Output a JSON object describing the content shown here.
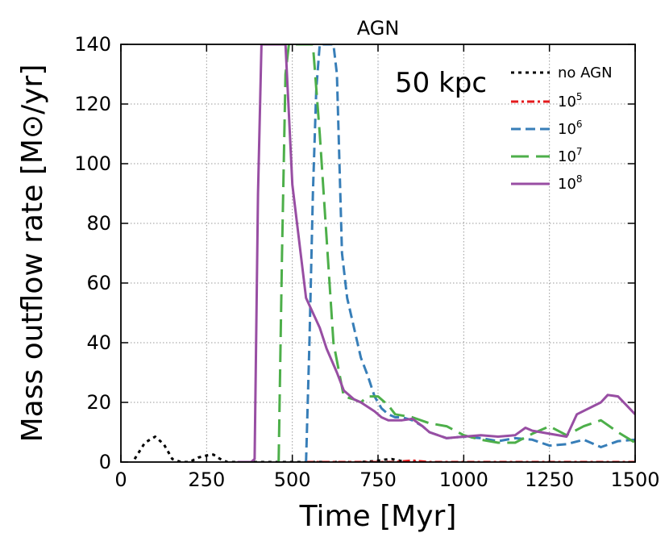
{
  "chart_data": {
    "type": "line",
    "title": "AGN",
    "xlabel": "Time [Myr]",
    "ylabel": "Mass outflow rate [M⊙/yr]",
    "annotation": "50 kpc",
    "xlim": [
      0,
      1500
    ],
    "ylim": [
      0,
      140
    ],
    "xticks": [
      0,
      250,
      500,
      750,
      1000,
      1250,
      1500
    ],
    "yticks": [
      0,
      20,
      40,
      60,
      80,
      100,
      120,
      140
    ],
    "grid": true,
    "legend_position": "top-right",
    "colors": {
      "no_agn": "#000000",
      "e5": "#e41a1c",
      "e6": "#377eb8",
      "e7": "#4daf4a",
      "e8": "#984ea3"
    },
    "series": [
      {
        "name": "no AGN",
        "label_base": "no AGN",
        "label_exp": "",
        "color_key": "no_agn",
        "style": "dotted",
        "x": [
          40,
          70,
          100,
          125,
          150,
          175,
          200,
          225,
          250,
          270,
          290,
          310,
          700,
          740,
          770,
          790,
          820,
          850,
          880
        ],
        "y": [
          1,
          6.5,
          8.5,
          6,
          1,
          0,
          0,
          1.5,
          2.2,
          2.5,
          1,
          0,
          0,
          0.3,
          0.8,
          1,
          0.3,
          0,
          0
        ]
      },
      {
        "name": "10^5",
        "label_base": "10",
        "label_exp": "5",
        "color_key": "e5",
        "style": "dashdot",
        "x": [
          540,
          600,
          650,
          700,
          750,
          800,
          850,
          900,
          950,
          1000,
          1050,
          1100,
          1150,
          1200,
          1250,
          1300,
          1350,
          1400,
          1450,
          1500
        ],
        "y": [
          0,
          0,
          0,
          0,
          0,
          0,
          0.5,
          0,
          0,
          0,
          0,
          0,
          0,
          0,
          0,
          0,
          0,
          0,
          0,
          0
        ]
      },
      {
        "name": "10^6",
        "label_base": "10",
        "label_exp": "6",
        "color_key": "e6",
        "style": "dashed",
        "x": [
          540,
          550,
          560,
          570,
          580,
          590,
          600,
          610,
          620,
          630,
          645,
          660,
          680,
          700,
          720,
          740,
          760,
          780,
          800,
          820,
          850,
          880,
          900,
          950,
          1000,
          1050,
          1100,
          1150,
          1200,
          1250,
          1300,
          1350,
          1400,
          1450,
          1500
        ],
        "y": [
          0,
          40,
          90,
          125,
          140,
          140,
          140,
          140,
          140,
          130,
          70,
          55,
          45,
          35,
          29,
          22,
          18,
          16,
          15,
          15,
          14,
          12,
          10,
          8,
          8.5,
          8,
          7,
          8,
          7.5,
          5.5,
          6,
          7.5,
          5,
          7,
          7.5
        ]
      },
      {
        "name": "10^7",
        "label_base": "10",
        "label_exp": "7",
        "color_key": "e7",
        "style": "longdash",
        "x": [
          460,
          470,
          480,
          490,
          500,
          510,
          520,
          530,
          540,
          560,
          580,
          600,
          620,
          650,
          680,
          700,
          720,
          750,
          780,
          800,
          850,
          900,
          950,
          1000,
          1050,
          1100,
          1150,
          1200,
          1250,
          1300,
          1350,
          1400,
          1450,
          1500
        ],
        "y": [
          0,
          70,
          130,
          140,
          140,
          140,
          140,
          140,
          140,
          140,
          110,
          75,
          40,
          22,
          21,
          20,
          22,
          22,
          19,
          16,
          15,
          13,
          12,
          9,
          7.5,
          6.5,
          6.5,
          9.5,
          12,
          9,
          12,
          14,
          10,
          6.5
        ]
      },
      {
        "name": "10^8",
        "label_base": "10",
        "label_exp": "8",
        "color_key": "e8",
        "style": "solid",
        "x": [
          340,
          380,
          390,
          400,
          410,
          420,
          430,
          440,
          450,
          460,
          470,
          480,
          500,
          540,
          580,
          600,
          630,
          650,
          680,
          700,
          740,
          760,
          780,
          800,
          820,
          850,
          880,
          900,
          950,
          1000,
          1050,
          1100,
          1150,
          1180,
          1200,
          1250,
          1300,
          1330,
          1400,
          1420,
          1450,
          1500
        ],
        "y": [
          0,
          0,
          1,
          90,
          140,
          140,
          140,
          140,
          140,
          140,
          140,
          140,
          93,
          55,
          45,
          38,
          30,
          24,
          21,
          20,
          17,
          15,
          14,
          14,
          14,
          14.5,
          12,
          10,
          8,
          8.5,
          9,
          8.5,
          9,
          11.5,
          10.5,
          9.5,
          8.5,
          16,
          20,
          22.5,
          22,
          16
        ]
      }
    ]
  }
}
